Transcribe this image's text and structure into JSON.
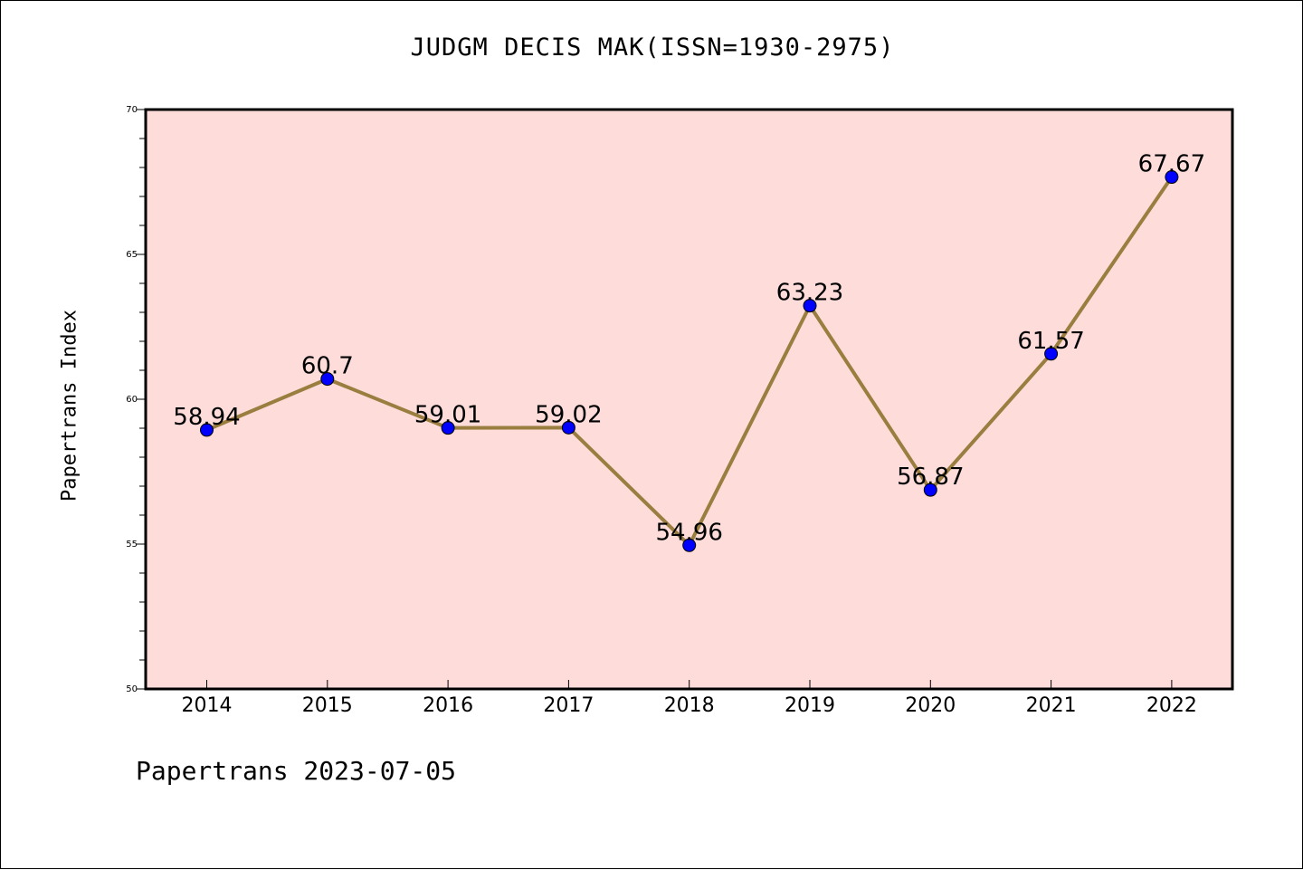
{
  "title": "JUDGM DECIS MAK(ISSN=1930-2975)",
  "ylabel": "Papertrans Index",
  "footer": "Papertrans 2023-07-05",
  "colors": {
    "plot_background": "#fddcda",
    "line": "#9a7e3f",
    "marker": "#0000ff",
    "frame": "#000000"
  },
  "chart_data": {
    "type": "line",
    "title": "JUDGM DECIS MAK(ISSN=1930-2975)",
    "xlabel": "",
    "ylabel": "Papertrans Index",
    "categories": [
      "2014",
      "2015",
      "2016",
      "2017",
      "2018",
      "2019",
      "2020",
      "2021",
      "2022"
    ],
    "series": [
      {
        "values": [
          58.94,
          60.7,
          59.01,
          59.02,
          54.96,
          63.23,
          56.87,
          61.57,
          67.67
        ],
        "labels": [
          "58.94",
          "60.7",
          "59.01",
          "59.02",
          "54.96",
          "63.23",
          "56.87",
          "61.57",
          "67.67"
        ]
      }
    ],
    "ylim": [
      50,
      70
    ],
    "yticks": [
      50,
      55,
      60,
      65,
      70
    ],
    "ytick_labels": [
      "50",
      "55",
      "60",
      "65",
      "70"
    ],
    "grid": false,
    "legend": "none"
  }
}
